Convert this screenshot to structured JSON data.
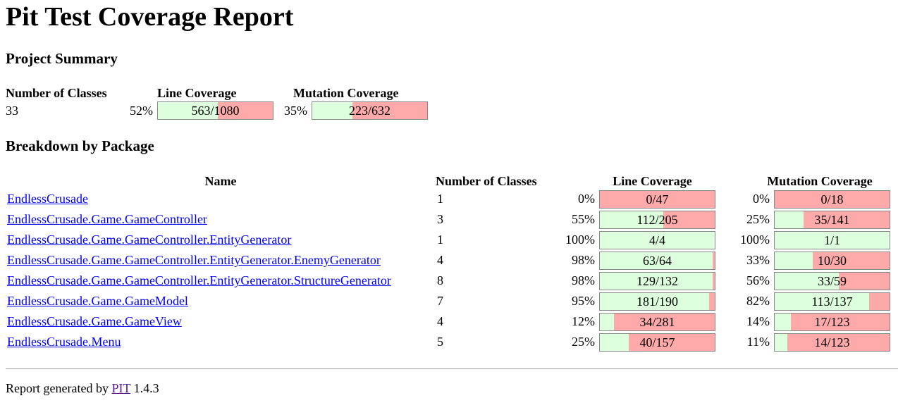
{
  "title": "Pit Test Coverage Report",
  "summary": {
    "heading": "Project Summary",
    "headers": {
      "classes": "Number of Classes",
      "line": "Line Coverage",
      "mutation": "Mutation Coverage"
    },
    "classes": "33",
    "line": {
      "percent": "52%",
      "label": "563/1080",
      "fraction": 0.52
    },
    "mutation": {
      "percent": "35%",
      "label": "223/632",
      "fraction": 0.35
    }
  },
  "breakdown": {
    "heading": "Breakdown by Package",
    "headers": {
      "name": "Name",
      "classes": "Number of Classes",
      "line": "Line Coverage",
      "mutation": "Mutation Coverage"
    },
    "rows": [
      {
        "name": "EndlessCrusade",
        "classes": "1",
        "line": {
          "percent": "0%",
          "label": "0/47",
          "fraction": 0.0
        },
        "mutation": {
          "percent": "0%",
          "label": "0/18",
          "fraction": 0.0
        }
      },
      {
        "name": "EndlessCrusade.Game.GameController",
        "classes": "3",
        "line": {
          "percent": "55%",
          "label": "112/205",
          "fraction": 0.55
        },
        "mutation": {
          "percent": "25%",
          "label": "35/141",
          "fraction": 0.25
        }
      },
      {
        "name": "EndlessCrusade.Game.GameController.EntityGenerator",
        "classes": "1",
        "line": {
          "percent": "100%",
          "label": "4/4",
          "fraction": 1.0
        },
        "mutation": {
          "percent": "100%",
          "label": "1/1",
          "fraction": 1.0
        }
      },
      {
        "name": "EndlessCrusade.Game.GameController.EntityGenerator.EnemyGenerator",
        "classes": "4",
        "line": {
          "percent": "98%",
          "label": "63/64",
          "fraction": 0.98
        },
        "mutation": {
          "percent": "33%",
          "label": "10/30",
          "fraction": 0.33
        }
      },
      {
        "name": "EndlessCrusade.Game.GameController.EntityGenerator.StructureGenerator",
        "classes": "8",
        "line": {
          "percent": "98%",
          "label": "129/132",
          "fraction": 0.98
        },
        "mutation": {
          "percent": "56%",
          "label": "33/59",
          "fraction": 0.56
        }
      },
      {
        "name": "EndlessCrusade.Game.GameModel",
        "classes": "7",
        "line": {
          "percent": "95%",
          "label": "181/190",
          "fraction": 0.95
        },
        "mutation": {
          "percent": "82%",
          "label": "113/137",
          "fraction": 0.82
        }
      },
      {
        "name": "EndlessCrusade.Game.GameView",
        "classes": "4",
        "line": {
          "percent": "12%",
          "label": "34/281",
          "fraction": 0.12
        },
        "mutation": {
          "percent": "14%",
          "label": "17/123",
          "fraction": 0.14
        }
      },
      {
        "name": "EndlessCrusade.Menu",
        "classes": "5",
        "line": {
          "percent": "25%",
          "label": "40/157",
          "fraction": 0.25
        },
        "mutation": {
          "percent": "11%",
          "label": "14/123",
          "fraction": 0.11
        }
      }
    ]
  },
  "footer": {
    "prefix": "Report generated by",
    "link": "PIT",
    "version": "1.4.3"
  },
  "colors": {
    "covered": "#ddffdd",
    "uncovered": "#ffaaaa",
    "link": "#0000ee",
    "visited_link": "#551a8b"
  }
}
